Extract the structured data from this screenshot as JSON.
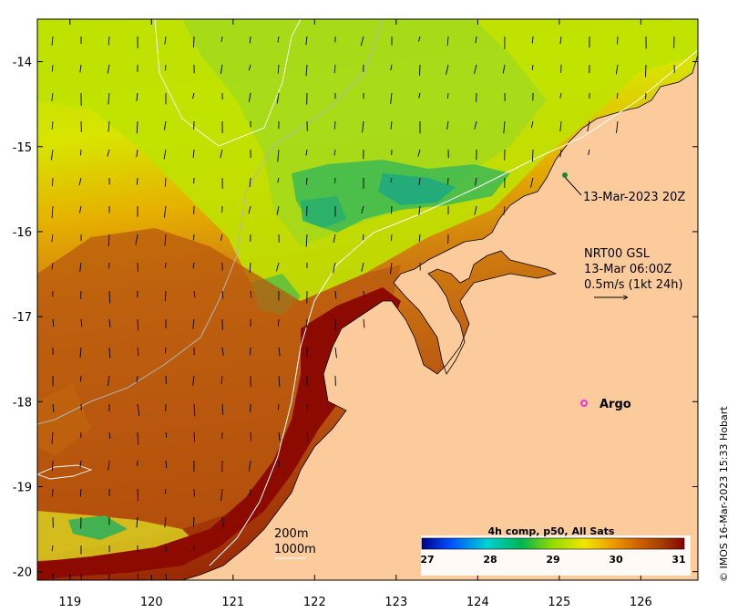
{
  "map": {
    "lon_range": [
      118.6,
      126.7
    ],
    "lat_range": [
      -20.1,
      -13.5
    ],
    "x_ticks": [
      "119",
      "120",
      "121",
      "122",
      "123",
      "124",
      "125",
      "126"
    ],
    "y_ticks": [
      "-14",
      "-15",
      "-16",
      "-17",
      "-18",
      "-19",
      "-20"
    ]
  },
  "annotations": {
    "track_time": "13-Mar-2023 20Z",
    "current_source": "NRT00 GSL",
    "current_time": "13-Mar 06:00Z",
    "current_scale": "0.5m/s (1kt 24h)",
    "argo_label": "Argo"
  },
  "bathymetry_legend": {
    "line1": "200m",
    "line2": "1000m"
  },
  "colorbar": {
    "title": "4h comp, p50, All Sats",
    "ticks": [
      "27",
      "28",
      "29",
      "30",
      "31"
    ],
    "colors": [
      "#00008b",
      "#0050ff",
      "#00d2d2",
      "#00b450",
      "#96dc00",
      "#f0e600",
      "#f0a000",
      "#d26400",
      "#a03c00",
      "#8b0000"
    ]
  },
  "credit": "© IMOS 16-Mar-2023 15:33 Hobart",
  "palette": {
    "land": "#fccb9b",
    "sst_cool": "#1fb070",
    "sst_mid": "#c8e600",
    "sst_warm": "#c96d0e",
    "sst_hot": "#8c0a00",
    "argo": "#ff00ff"
  }
}
